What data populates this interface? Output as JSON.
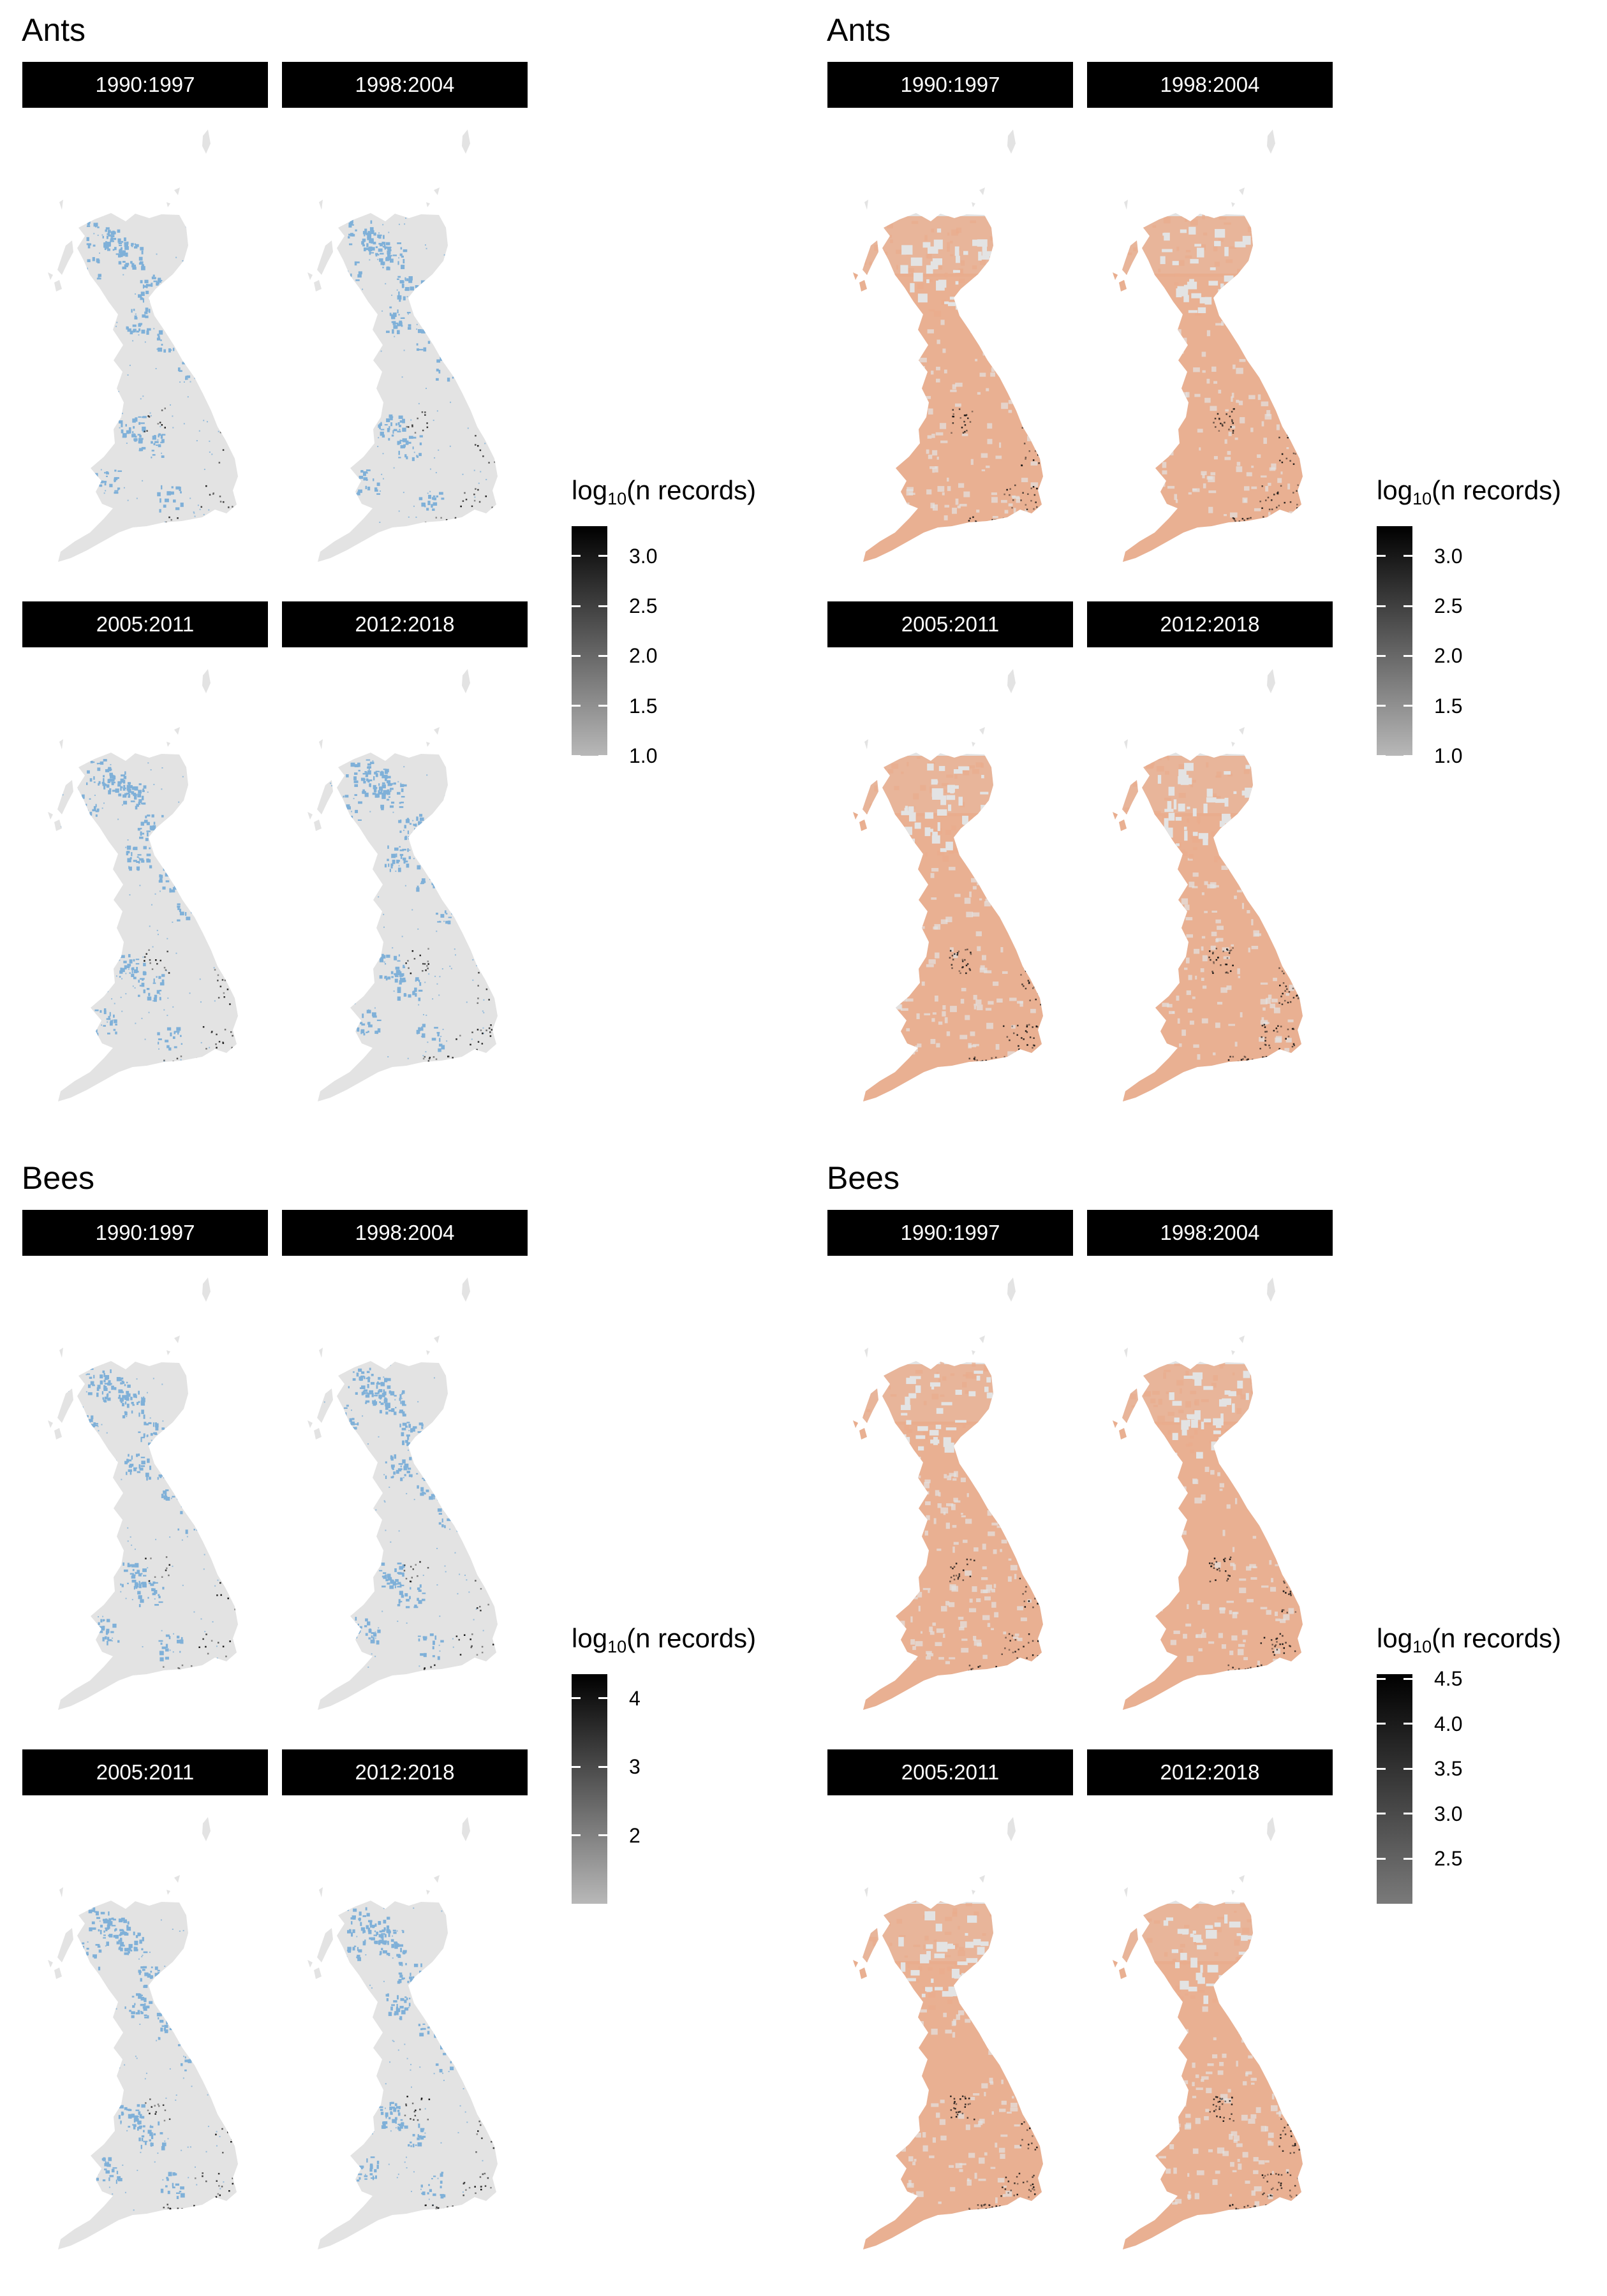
{
  "panels": [
    {
      "title": "Ants",
      "style": "points",
      "facets": [
        "1990:1997",
        "1998:2004",
        "2005:2011",
        "2012:2018"
      ],
      "legend": {
        "title_prefix": "log",
        "title_sub": "10",
        "title_suffix": "(n records)",
        "ticks": [
          "3.0",
          "2.5",
          "2.0",
          "1.5",
          "1.0"
        ],
        "tick_values": [
          3.0,
          2.5,
          2.0,
          1.5,
          1.0
        ],
        "range": [
          1.0,
          3.3
        ],
        "color_low": "#b8b8b8",
        "color_high": "#000000"
      }
    },
    {
      "title": "Ants",
      "style": "fill",
      "facets": [
        "1990:1997",
        "1998:2004",
        "2005:2011",
        "2012:2018"
      ],
      "legend": {
        "title_prefix": "log",
        "title_sub": "10",
        "title_suffix": "(n records)",
        "ticks": [
          "3.0",
          "2.5",
          "2.0",
          "1.5",
          "1.0"
        ],
        "tick_values": [
          3.0,
          2.5,
          2.0,
          1.5,
          1.0
        ],
        "range": [
          1.0,
          3.3
        ],
        "color_low": "#b8b8b8",
        "color_high": "#000000"
      }
    },
    {
      "title": "Bees",
      "style": "points",
      "facets": [
        "1990:1997",
        "1998:2004",
        "2005:2011",
        "2012:2018"
      ],
      "legend": {
        "title_prefix": "log",
        "title_sub": "10",
        "title_suffix": "(n records)",
        "ticks": [
          "4",
          "3",
          "2"
        ],
        "tick_values": [
          4,
          3,
          2
        ],
        "range": [
          1.0,
          4.35
        ],
        "color_low": "#b8b8b8",
        "color_high": "#000000"
      }
    },
    {
      "title": "Bees",
      "style": "fill",
      "facets": [
        "1990:1997",
        "1998:2004",
        "2005:2011",
        "2012:2018"
      ],
      "legend": {
        "title_prefix": "log",
        "title_sub": "10",
        "title_suffix": "(n records)",
        "ticks": [
          "4.5",
          "4.0",
          "3.5",
          "3.0",
          "2.5"
        ],
        "tick_values": [
          4.5,
          4.0,
          3.5,
          3.0,
          2.5
        ],
        "range": [
          2.0,
          4.55
        ],
        "color_low": "#7a7a7a",
        "color_high": "#000000"
      }
    }
  ],
  "colors": {
    "land": "#e3e3e3",
    "effort_blue": "#7fb0d8",
    "effort_fill": "#e9ad8d",
    "hotspot": "#111111"
  }
}
